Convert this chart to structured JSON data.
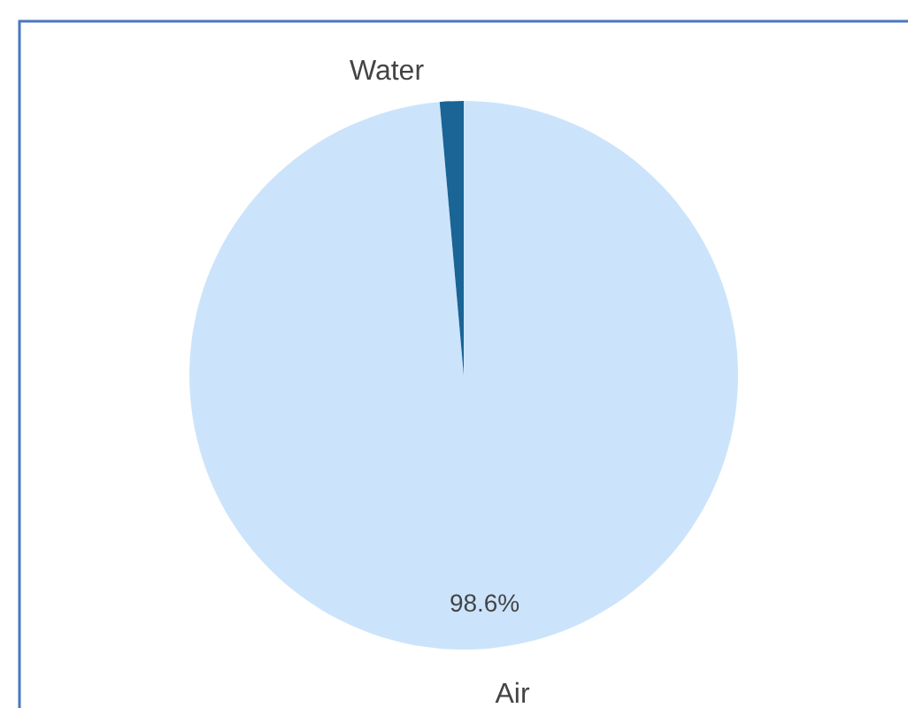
{
  "chart_data": {
    "type": "pie",
    "categories": [
      "Air",
      "Water"
    ],
    "values": [
      98.6,
      1.4
    ],
    "colors": [
      "#cce4fb",
      "#1a6496"
    ],
    "value_labels": [
      "98.6%",
      null
    ]
  }
}
